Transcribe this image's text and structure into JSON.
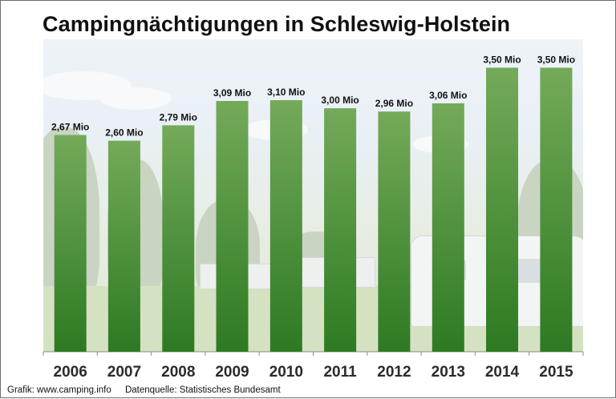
{
  "page": {
    "source_text": "Grafik: www.camping.info",
    "credit_text": "Datenquelle:  Statistisches Bundesamt"
  },
  "chart_data": {
    "type": "bar",
    "title": "Campingnächtigungen in Schleswig-Holstein",
    "xlabel": "",
    "ylabel": "",
    "categories": [
      "2006",
      "2007",
      "2008",
      "2009",
      "2010",
      "2011",
      "2012",
      "2013",
      "2014",
      "2015"
    ],
    "values": [
      2.67,
      2.6,
      2.79,
      3.09,
      3.1,
      3.0,
      2.96,
      3.06,
      3.5,
      3.5
    ],
    "data_labels": [
      "2,67 Mio",
      "2,60 Mio",
      "2,79 Mio",
      "3,09 Mio",
      "3,10 Mio",
      "3,00 Mio",
      "2,96 Mio",
      "3,06 Mio",
      "3,50 Mio",
      "3,50 Mio"
    ],
    "ylim": [
      0,
      3.85
    ],
    "grid": false,
    "legend": "none",
    "colors": {
      "bar_top": "#74aa5a",
      "bar_bottom": "#2d7a22",
      "axis": "#8a8a8a",
      "tick_label": "#2b2b2b"
    }
  }
}
